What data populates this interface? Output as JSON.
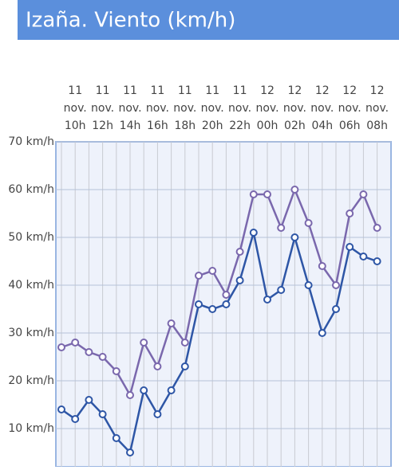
{
  "chart_data": {
    "type": "line",
    "title": "Izaña. Viento (km/h)",
    "categories": [
      null,
      "11 nov. 10h",
      null,
      "11 nov. 12h",
      null,
      "11 nov. 14h",
      null,
      "11 nov. 16h",
      null,
      "11 nov. 18h",
      null,
      "11 nov. 20h",
      null,
      "11 nov. 22h",
      null,
      "12 nov. 00h",
      null,
      "12 nov. 02h",
      null,
      "12 nov. 04h",
      null,
      "12 nov. 06h",
      null,
      "12 nov. 08h"
    ],
    "series": [
      {
        "color": "#7a68ad",
        "values": [
          27,
          28,
          26,
          25,
          22,
          17,
          28,
          23,
          32,
          28,
          42,
          43,
          38,
          47,
          59,
          59,
          52,
          60,
          53,
          44,
          40,
          55,
          59,
          52
        ]
      },
      {
        "color": "#2e56a6",
        "values": [
          14,
          12,
          16,
          13,
          8,
          5,
          18,
          13,
          18,
          23,
          36,
          35,
          36,
          41,
          51,
          37,
          39,
          50,
          40,
          30,
          35,
          48,
          46,
          45
        ]
      }
    ],
    "ylim": [
      4,
      70
    ],
    "yticks": [
      {
        "value": 10,
        "label": "10 km/h"
      },
      {
        "value": 20,
        "label": "20 km/h"
      },
      {
        "value": 30,
        "label": "30 km/h"
      },
      {
        "value": 40,
        "label": "40 km/h"
      },
      {
        "value": 50,
        "label": "50 km/h"
      },
      {
        "value": 60,
        "label": "60 km/h"
      },
      {
        "value": 70,
        "label": "70 km/h"
      }
    ],
    "grid": true
  }
}
